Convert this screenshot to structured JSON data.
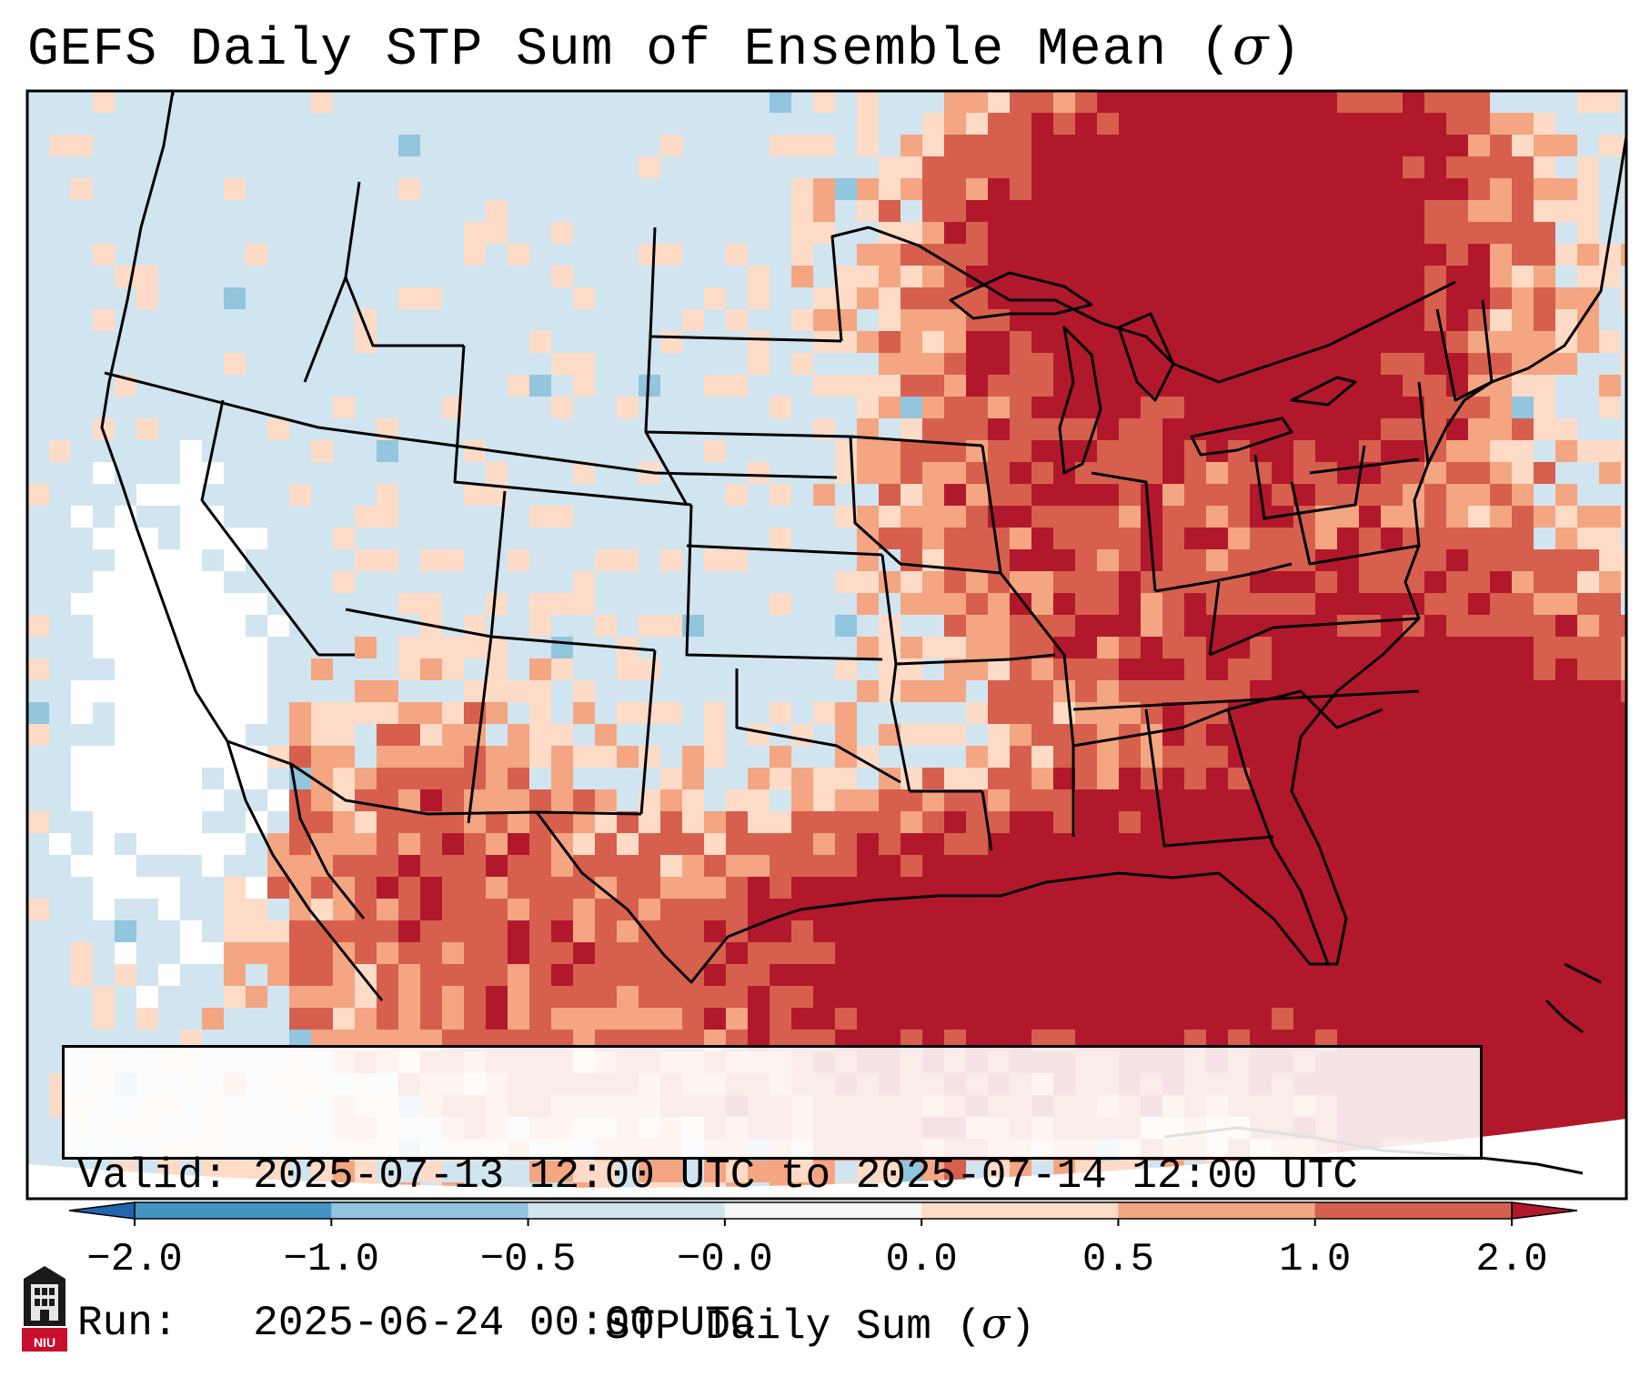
{
  "title": {
    "main": "GEFS Daily STP Sum of Ensemble Mean (",
    "symbol": "σ",
    "close": ")"
  },
  "info": {
    "valid_line": "Valid: 2025-07-13 12:00 UTC to 2025-07-14 12:00 UTC",
    "run_line": "Run:   2025-06-24 00:00 UTC"
  },
  "colorbar": {
    "ticks": [
      "−2.0",
      "−1.0",
      "−0.5",
      "−0.0",
      "0.0",
      "0.5",
      "1.0",
      "2.0"
    ],
    "label_main": "STP Daily Sum (",
    "label_symbol": "σ",
    "label_close": ")",
    "colors": {
      "below": "#2166ac",
      "bins": [
        "#4393c3",
        "#92c5de",
        "#d1e5f0",
        "#f7f7f7",
        "#fddbc7",
        "#f4a582",
        "#d6604d"
      ],
      "above": "#b2182b"
    }
  },
  "colors": {
    "background": "#d1e5f0",
    "neutral": "#ffffff",
    "light_pos": "#fddbc7",
    "mid_pos": "#f4a582",
    "high_pos": "#d6604d",
    "max_pos": "#b2182b",
    "light_neg": "#92c5de"
  },
  "logo": {
    "text": "NIU"
  }
}
